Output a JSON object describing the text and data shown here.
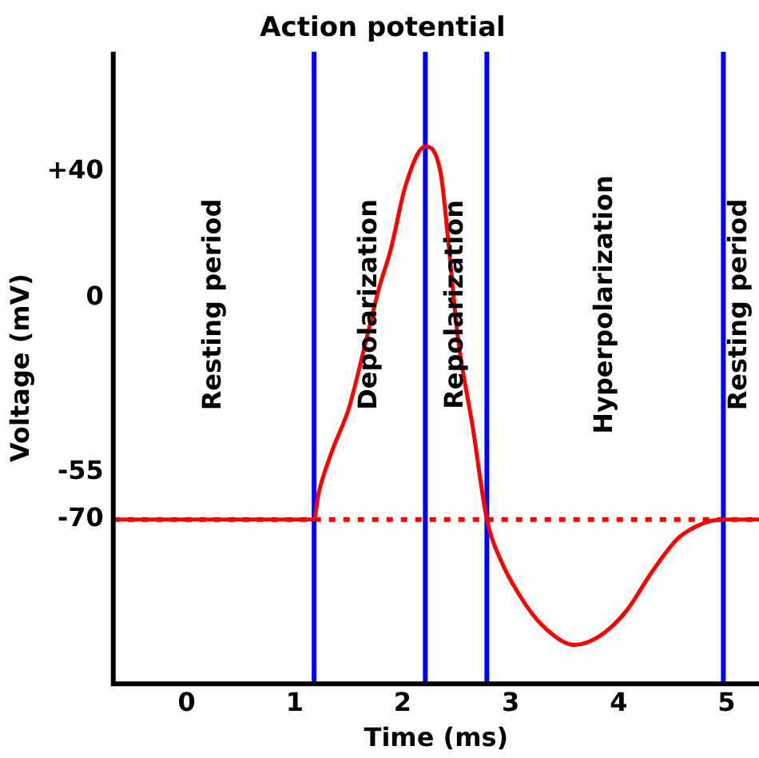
{
  "chart_data": {
    "type": "line",
    "title": "Action potential",
    "xlabel": "Time (ms)",
    "ylabel": "Voltage (mV)",
    "xlim": [
      -0.68,
      5.3
    ],
    "ylim": [
      -122,
      78
    ],
    "xticks": [
      0,
      1,
      2,
      3,
      4,
      5
    ],
    "yticks": [
      {
        "value": 40,
        "label": "+40"
      },
      0,
      -55,
      -70
    ],
    "grid": false,
    "legend": false,
    "marker": "none",
    "line_style": "solid",
    "series": [
      {
        "color": "#ff0000",
        "x": [
          -0.68,
          1.18,
          1.22,
          1.35,
          1.5,
          1.65,
          1.78,
          1.89,
          2.03,
          2.21,
          2.35,
          2.43,
          2.51,
          2.65,
          2.78,
          2.91,
          3.15,
          3.34,
          3.59,
          3.82,
          4.07,
          4.32,
          4.55,
          4.8,
          4.97,
          5.3
        ],
        "values": [
          -70,
          -70,
          -62,
          -48,
          -35,
          -15,
          3,
          15.5,
          36,
          48,
          40,
          15.5,
          -12,
          -41,
          -70,
          -83,
          -97.5,
          -105,
          -109.7,
          -107,
          -99,
          -86,
          -76,
          -71,
          -70,
          -70
        ]
      }
    ],
    "ref_lines": [
      {
        "axis": "y",
        "value": -70,
        "color": "#ff0000",
        "line_style": "dotted"
      },
      {
        "axis": "x",
        "value": 1.18,
        "color": "#0000ff"
      },
      {
        "axis": "x",
        "value": 2.21,
        "color": "#0000ff"
      },
      {
        "axis": "x",
        "value": 2.78,
        "color": "#0000ff"
      },
      {
        "axis": "x",
        "value": 4.97,
        "color": "#0000ff"
      }
    ],
    "annotations": [
      "Resting period",
      "Depolarization",
      "Repolarization",
      "Hyperpolarization",
      "Resting period"
    ]
  }
}
